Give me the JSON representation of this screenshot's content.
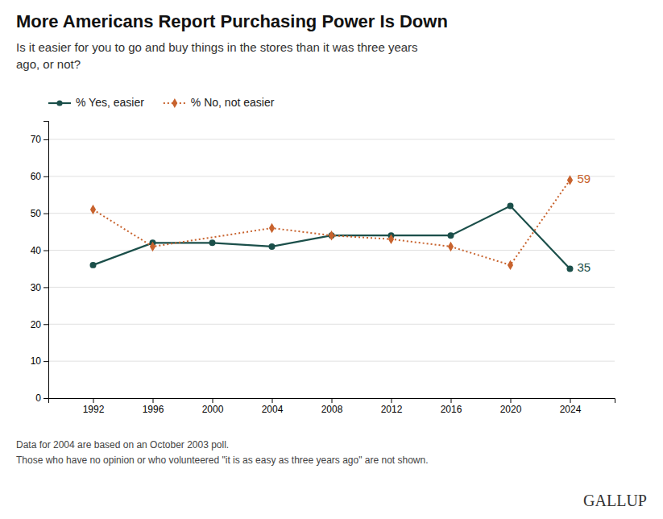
{
  "chart_data": {
    "type": "line",
    "title": "More Americans Report Purchasing Power Is Down",
    "subtitle": "Is it easier for you to go and buy things in the stores than it was three years\nago, or not?",
    "series": [
      {
        "name": "% Yes, easier",
        "color": "#1b4f4a",
        "marker": "circle",
        "line_style": "solid",
        "x": [
          1992,
          1996,
          2000,
          2004,
          2008,
          2012,
          2016,
          2020,
          2024
        ],
        "values": [
          36,
          42,
          42,
          41,
          44,
          44,
          44,
          52,
          35
        ]
      },
      {
        "name": "% No, not easier",
        "color": "#c8632e",
        "marker": "diamond",
        "line_style": "dotted",
        "x": [
          1992,
          1996,
          2004,
          2008,
          2012,
          2016,
          2020,
          2024
        ],
        "values": [
          51,
          41,
          46,
          44,
          43,
          41,
          36,
          59
        ]
      }
    ],
    "annotations": [
      {
        "text": "35",
        "x": 2024,
        "y": 35,
        "color": "#1b4f4a"
      },
      {
        "text": "59",
        "x": 2024,
        "y": 59,
        "color": "#c8632e"
      }
    ],
    "footnotes": [
      "Data for 2004 are based on an October 2003 poll.",
      "Those who have no opinion or who volunteered \"it is as easy as three years ago\" are not shown."
    ],
    "credit": "GALLUP",
    "xlim": [
      1989,
      2027
    ],
    "xticks": [
      1992,
      1996,
      2000,
      2004,
      2008,
      2012,
      2016,
      2020,
      2024
    ],
    "ylim": [
      0,
      75
    ],
    "yticks": [
      0,
      10,
      20,
      30,
      40,
      50,
      60,
      70
    ],
    "grid": true,
    "legend": "top-left"
  }
}
